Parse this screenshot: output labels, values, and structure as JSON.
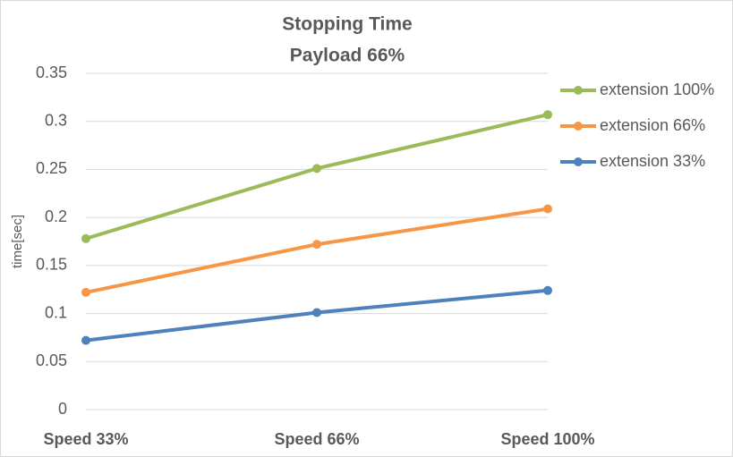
{
  "chart_data": {
    "type": "line",
    "title": "Stopping Time",
    "subtitle": "Payload 66%",
    "y_label": "time[sec]",
    "categories": [
      "Speed 33%",
      "Speed 66%",
      "Speed 100%"
    ],
    "series": [
      {
        "name": "extension 100%",
        "color": "#9bbb59",
        "values": [
          0.178,
          0.251,
          0.307
        ]
      },
      {
        "name": "extension 66%",
        "color": "#f79646",
        "values": [
          0.122,
          0.172,
          0.209
        ]
      },
      {
        "name": "extension 33%",
        "color": "#4f81bd",
        "values": [
          0.072,
          0.101,
          0.124
        ]
      }
    ],
    "ylim": [
      0,
      0.35
    ],
    "yticks": [
      0,
      0.05,
      0.1,
      0.15,
      0.2,
      0.25,
      0.3,
      0.35
    ],
    "grid": true,
    "legend": "right"
  }
}
